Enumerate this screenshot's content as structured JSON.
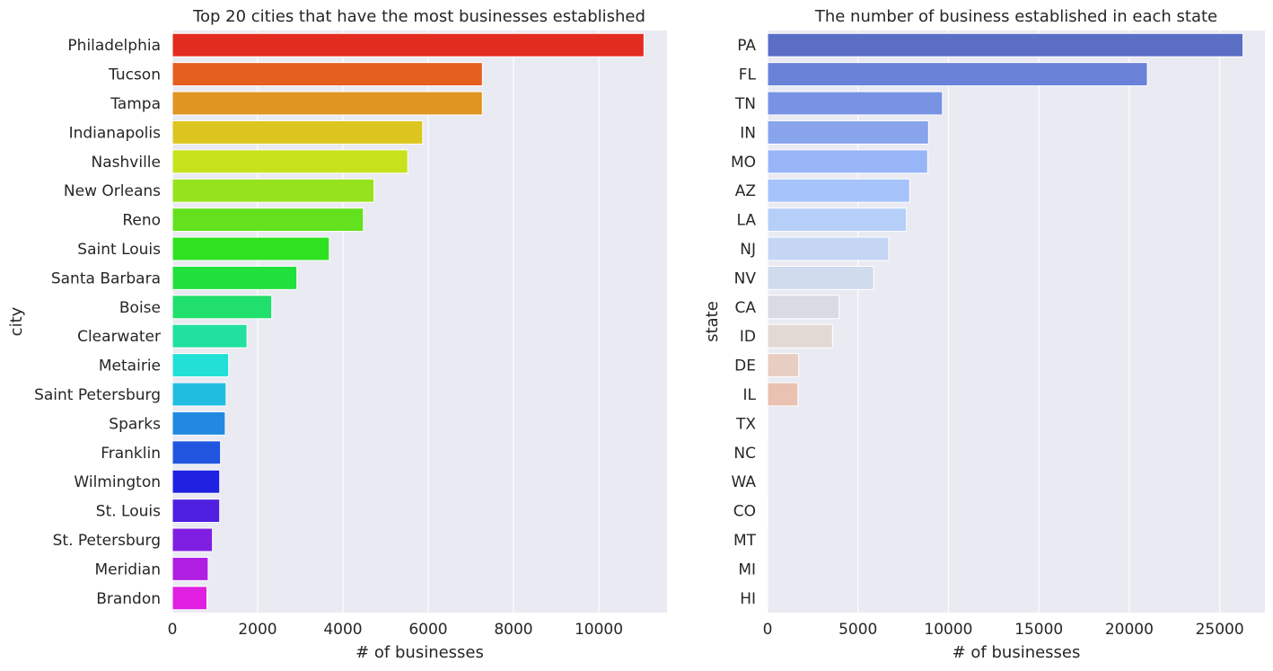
{
  "chart_data": [
    {
      "type": "bar",
      "orientation": "horizontal",
      "title": "Top 20 cities that have the most businesses established",
      "xlabel": "# of businesses",
      "ylabel": "city",
      "categories": [
        "Philadelphia",
        "Tucson",
        "Tampa",
        "Indianapolis",
        "Nashville",
        "New Orleans",
        "Reno",
        "Saint Louis",
        "Santa Barbara",
        "Boise",
        "Clearwater",
        "Metairie",
        "Saint Petersburg",
        "Sparks",
        "Franklin",
        "Wilmington",
        "St. Louis",
        "St. Petersburg",
        "Meridian",
        "Brandon"
      ],
      "values": [
        11060,
        7270,
        7270,
        5870,
        5520,
        4730,
        4480,
        3680,
        2920,
        2330,
        1750,
        1320,
        1260,
        1240,
        1130,
        1110,
        1110,
        940,
        840,
        810
      ],
      "xlim": [
        0,
        11600
      ],
      "xticks": [
        "0",
        "2000",
        "4000",
        "6000",
        "8000",
        "10000"
      ],
      "grid": true,
      "palette": "gist_rainbow",
      "colors": [
        "#e32c20",
        "#e55f21",
        "#e09522",
        "#ddc51f",
        "#c7e21d",
        "#97e21e",
        "#64e11e",
        "#2fe120",
        "#20e03c",
        "#20df6d",
        "#21e0a0",
        "#22e0d6",
        "#21bde0",
        "#218ae0",
        "#2156e0",
        "#1f22e0",
        "#4f20e0",
        "#7f1fe1",
        "#b01fe1",
        "#e01fe1"
      ],
      "grid_color": "#ffffff",
      "plot_bg": "#eaeaf2"
    },
    {
      "type": "bar",
      "orientation": "horizontal",
      "title": "The number of business established in each state",
      "xlabel": "# of businesses",
      "ylabel": "state",
      "categories": [
        "PA",
        "FL",
        "TN",
        "IN",
        "MO",
        "AZ",
        "LA",
        "NJ",
        "NV",
        "CA",
        "ID",
        "DE",
        "IL",
        "TX",
        "NC",
        "WA",
        "CO",
        "MT",
        "MI",
        "HI"
      ],
      "values": [
        26290,
        21000,
        9670,
        8900,
        8850,
        7860,
        7680,
        6700,
        5870,
        3950,
        3590,
        1720,
        1680,
        4,
        1,
        2,
        3,
        1,
        1,
        2
      ],
      "xlim": [
        0,
        27500
      ],
      "xticks": [
        "0",
        "5000",
        "10000",
        "15000",
        "20000",
        "25000"
      ],
      "grid": true,
      "palette": "coolwarm",
      "colors": [
        "#5a6ec6",
        "#6a82d8",
        "#7893e4",
        "#87a4ed",
        "#97b5f7",
        "#a6c3fb",
        "#b5cff9",
        "#c4d6f4",
        "#d0dbee",
        "#d8dbe4",
        "#e2d9d4",
        "#e8cdc1",
        "#eac2b1",
        "#e7b39d",
        "#e4a58b",
        "#df9578",
        "#d88566",
        "#cc7256",
        "#bf5f47",
        "#b14c3a"
      ],
      "grid_color": "#ffffff",
      "plot_bg": "#eaeaf2"
    }
  ]
}
